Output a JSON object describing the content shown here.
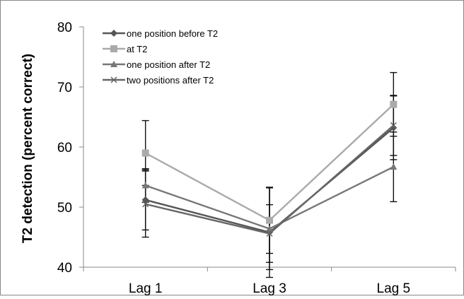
{
  "chart_data": {
    "type": "line",
    "categories": [
      "Lag 1",
      "Lag 3",
      "Lag 5"
    ],
    "ylabel": "T2 detection (percent correct)",
    "ylim": [
      40,
      80
    ],
    "yticks": [
      "40",
      "50",
      "60",
      "70",
      "80"
    ],
    "grid": false,
    "legend_position": "top-left",
    "series": [
      {
        "name": "one position before T2",
        "values": [
          51.2,
          45.8,
          63.2
        ],
        "errors": [
          5.0,
          7.5,
          5.3
        ],
        "color": "#555555",
        "marker": "diamond"
      },
      {
        "name": "at T2",
        "values": [
          59.0,
          47.8,
          67.1
        ],
        "errors": [
          5.4,
          5.5,
          5.3
        ],
        "color": "#aaaaaa",
        "marker": "square"
      },
      {
        "name": "one position after T2",
        "values": [
          53.6,
          46.4,
          56.7
        ],
        "errors": [
          2.8,
          6.8,
          5.8
        ],
        "color": "#777777",
        "marker": "triangle"
      },
      {
        "name": "two positions after T2",
        "values": [
          50.5,
          45.6,
          63.6
        ],
        "errors": [
          5.5,
          4.8,
          5.0
        ],
        "color": "#666666",
        "marker": "x"
      }
    ]
  }
}
